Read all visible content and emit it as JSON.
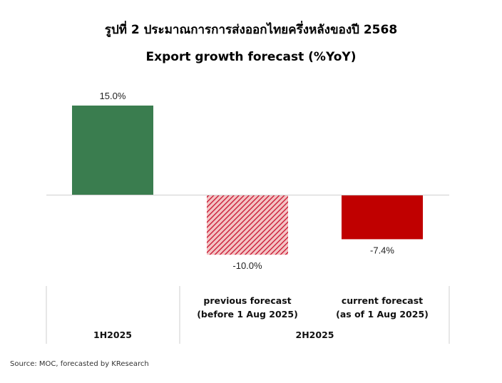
{
  "header": {
    "title": "รูปที่ 2 ประมาณการการส่งออกไทยครึ่งหลังของปี 2568",
    "subtitle": "Export growth forecast (%YoY)"
  },
  "source": "Source: MOC, forecasted by KResearch",
  "chart_data": {
    "type": "bar",
    "title": "Export growth forecast (%YoY)",
    "categories": [
      "1H2025",
      "previous forecast (before 1 Aug 2025)",
      "current forecast (as of 1 Aug 2025)"
    ],
    "category_lines": [
      [],
      [
        "previous forecast",
        "(before 1 Aug 2025)"
      ],
      [
        "current forecast",
        "(as of 1 Aug 2025)"
      ]
    ],
    "groups": [
      {
        "label": "1H2025",
        "span": [
          0,
          0
        ]
      },
      {
        "label": "2H2025",
        "span": [
          1,
          2
        ]
      }
    ],
    "values": [
      15.0,
      -10.0,
      -7.4
    ],
    "value_labels": [
      "15.0%",
      "-10.0%",
      "-7.4%"
    ],
    "colors": [
      "#3a7d4f",
      "#c8102e",
      "#c00000"
    ],
    "patterns": [
      "solid",
      "hatched",
      "solid"
    ],
    "ylim": [
      -10,
      15
    ],
    "grid": false,
    "legend": "none",
    "xlabel": "",
    "ylabel": ""
  }
}
